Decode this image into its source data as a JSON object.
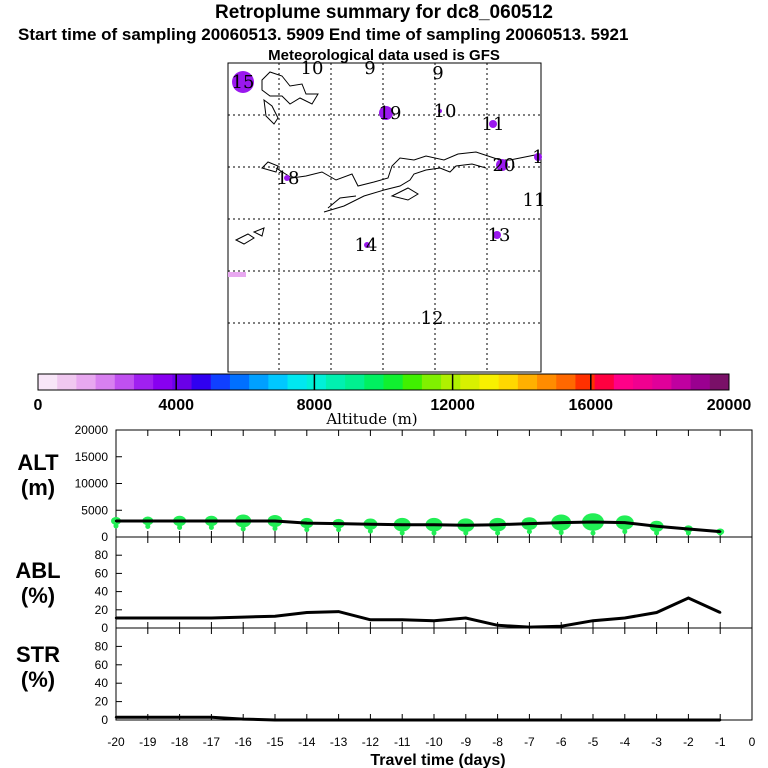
{
  "header": {
    "title": "Retroplume summary for dc8_060512",
    "sampling": "Start time of sampling 20060513.  5909     End time of sampling 20060513.  5921",
    "met": "Meteorological data used is GFS"
  },
  "map": {
    "labels": [
      {
        "text": "15",
        "color": "#8800ee",
        "big": true
      },
      {
        "text": "10",
        "color": "#000000"
      },
      {
        "text": "9",
        "color": "#000000"
      },
      {
        "text": "9",
        "color": "#000000"
      },
      {
        "text": "19",
        "color": "#9900ee",
        "big": true
      },
      {
        "text": "10",
        "color": "#000000"
      },
      {
        "text": "11",
        "color": "#000000"
      },
      {
        "text": "20",
        "color": "#9900ee"
      },
      {
        "text": "1",
        "color": "#000000"
      },
      {
        "text": "18",
        "color": "#000000"
      },
      {
        "text": "11",
        "color": "#000000"
      },
      {
        "text": "14",
        "color": "#000000"
      },
      {
        "text": "13",
        "color": "#000000"
      },
      {
        "text": "12",
        "color": "#000000"
      }
    ]
  },
  "colorbar": {
    "label": "Altitude (m)",
    "ticks": [
      "0",
      "4000",
      "8000",
      "12000",
      "16000",
      "20000"
    ],
    "colors": [
      "#f8e6f8",
      "#f0c8f0",
      "#e8a8f0",
      "#d880f0",
      "#c050f0",
      "#a020f0",
      "#8800f0",
      "#6a00e8",
      "#3000f0",
      "#1040ff",
      "#0070ff",
      "#00a0ff",
      "#00c8ff",
      "#00e8f0",
      "#00f0d8",
      "#00f0b0",
      "#00f090",
      "#00f060",
      "#10f030",
      "#40f000",
      "#80f000",
      "#b0f000",
      "#d8f000",
      "#f8f000",
      "#ffd800",
      "#ffb000",
      "#ff8c00",
      "#ff6800",
      "#ff3000",
      "#ff0040",
      "#ff0088",
      "#f00090",
      "#e0009a",
      "#c000a0",
      "#9a0090",
      "#7a1068"
    ]
  },
  "chart_data": [
    {
      "type": "line",
      "panel_label": [
        "ALT",
        "(m)"
      ],
      "x": [
        -20,
        -19,
        -18,
        -17,
        -16,
        -15,
        -14,
        -13,
        -12,
        -11,
        -10,
        -9,
        -8,
        -7,
        -6,
        -5,
        -4,
        -3,
        -2,
        -1
      ],
      "values": [
        3000,
        3000,
        3000,
        3000,
        3000,
        3000,
        2600,
        2500,
        2400,
        2300,
        2300,
        2200,
        2300,
        2500,
        2700,
        2800,
        2700,
        2000,
        1500,
        1000
      ],
      "bubble_sizes": [
        10,
        11,
        13,
        13,
        16,
        15,
        13,
        12,
        14,
        17,
        17,
        17,
        17,
        16,
        20,
        22,
        18,
        14,
        9,
        8
      ],
      "ylim": [
        0,
        20000
      ],
      "yticks": [
        "0",
        "5000",
        "10000",
        "15000",
        "20000"
      ]
    },
    {
      "type": "line",
      "panel_label": [
        "ABL",
        "(%)"
      ],
      "x": [
        -20,
        -19,
        -18,
        -17,
        -16,
        -15,
        -14,
        -13,
        -12,
        -11,
        -10,
        -9,
        -8,
        -7,
        -6,
        -5,
        -4,
        -3,
        -2,
        -1
      ],
      "values": [
        11,
        11,
        11,
        11,
        12,
        13,
        17,
        18,
        9,
        9,
        8,
        11,
        3,
        1,
        2,
        8,
        11,
        17,
        33,
        17
      ],
      "ylim": [
        0,
        100
      ],
      "yticks": [
        "0",
        "20",
        "40",
        "60",
        "80"
      ]
    },
    {
      "type": "line",
      "panel_label": [
        "STR",
        "(%)"
      ],
      "x": [
        -20,
        -19,
        -18,
        -17,
        -16,
        -15,
        -14,
        -13,
        -12,
        -11,
        -10,
        -9,
        -8,
        -7,
        -6,
        -5,
        -4,
        -3,
        -2,
        -1
      ],
      "values": [
        3,
        3,
        3,
        3,
        1,
        0,
        0,
        0,
        0,
        0,
        0,
        0,
        0,
        0,
        0,
        0,
        0,
        0,
        0,
        0
      ],
      "ylim": [
        0,
        100
      ],
      "yticks": [
        "0",
        "20",
        "40",
        "60",
        "80"
      ]
    }
  ],
  "xaxis": {
    "ticks": [
      "-20",
      "-19",
      "-18",
      "-17",
      "-16",
      "-15",
      "-14",
      "-13",
      "-12",
      "-11",
      "-10",
      "-9",
      "-8",
      "-7",
      "-6",
      "-5",
      "-4",
      "-3",
      "-2",
      "-1",
      "0"
    ],
    "label": "Travel time (days)"
  }
}
